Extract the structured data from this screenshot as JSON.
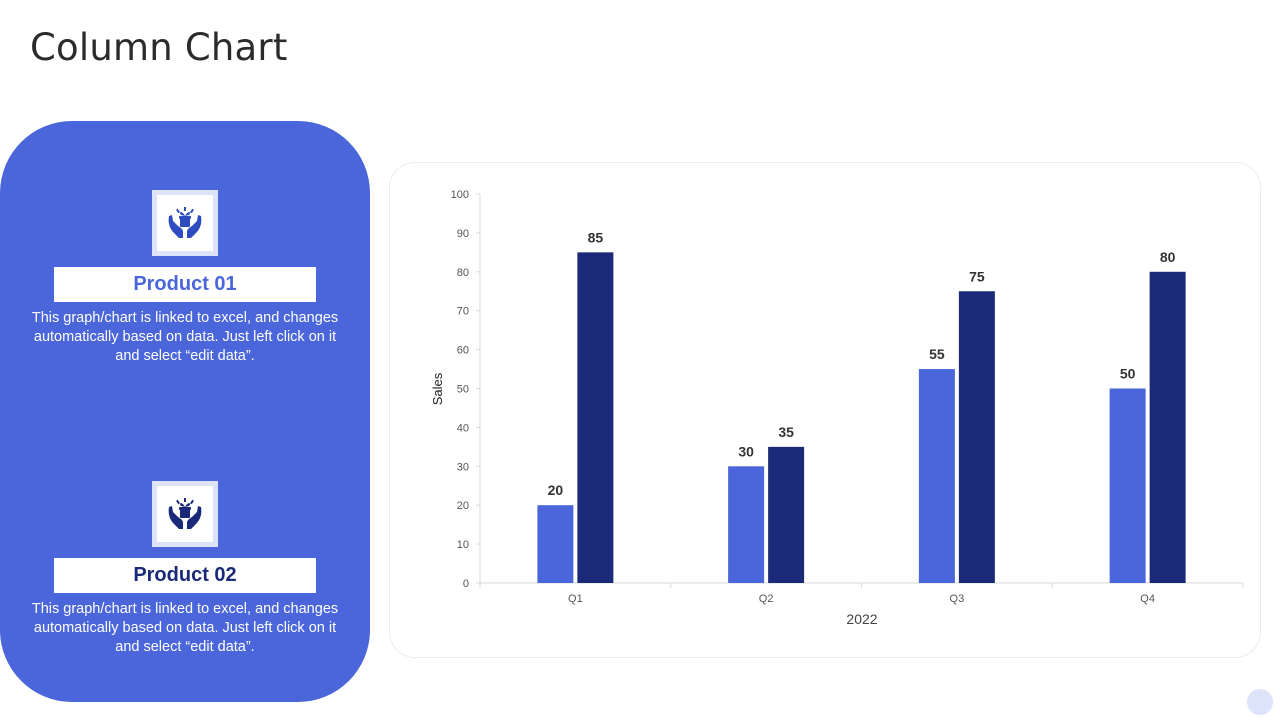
{
  "page": {
    "title": "Column Chart"
  },
  "products": [
    {
      "name": "Product 01",
      "icon": "hands-holding-gift-icon",
      "description": "This graph/chart is linked to excel, and changes automatically based on data. Just left click on it and select “edit data”."
    },
    {
      "name": "Product 02",
      "icon": "hands-holding-gift-icon",
      "description": "This graph/chart is linked to excel, and changes automatically based on data. Just left click on it and select “edit data”."
    }
  ],
  "colors": {
    "panel": "#4A66DA",
    "series1": "#4A66DA",
    "series2": "#1B2A78",
    "icon": "#2E4BC0"
  },
  "chart_data": {
    "type": "bar",
    "categories": [
      "Q1",
      "Q2",
      "Q3",
      "Q4"
    ],
    "series": [
      {
        "values": [
          20,
          30,
          55,
          50
        ],
        "color": "#4A66DA"
      },
      {
        "values": [
          85,
          35,
          75,
          80
        ],
        "color": "#1B2A78"
      }
    ],
    "xlabel": "2022",
    "ylabel": "Sales",
    "ylim": [
      0,
      100
    ],
    "yticks": [
      0,
      10,
      20,
      30,
      40,
      50,
      60,
      70,
      80,
      90,
      100
    ],
    "data_labels": true,
    "grid": false,
    "legend": "none"
  }
}
